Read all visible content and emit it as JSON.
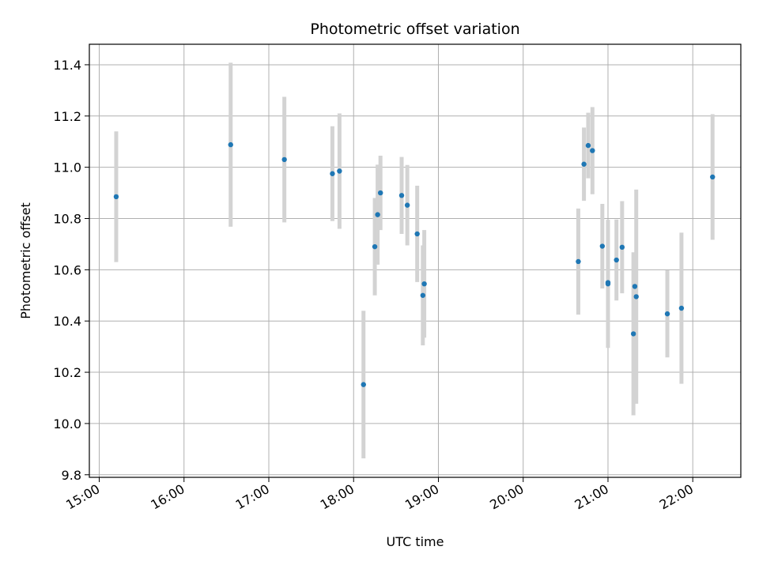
{
  "chart_data": {
    "type": "scatter",
    "title": "Photometric offset variation",
    "xlabel": "UTC time",
    "ylabel": "Photometric offset",
    "xlim": [
      "14:53",
      "22:34"
    ],
    "ylim": [
      9.79,
      11.48
    ],
    "x_ticks": [
      "15:00",
      "16:00",
      "17:00",
      "18:00",
      "19:00",
      "20:00",
      "21:00",
      "22:00"
    ],
    "y_ticks": [
      9.8,
      10.0,
      10.2,
      10.4,
      10.6,
      10.8,
      11.0,
      11.2,
      11.4
    ],
    "y_tick_labels": [
      "9.8",
      "10.0",
      "10.2",
      "10.4",
      "10.6",
      "10.8",
      "11.0",
      "11.2",
      "11.4"
    ],
    "grid": true,
    "marker_color": "#1f77b4",
    "errorbar_color": "#d3d3d3",
    "points": [
      {
        "x": "15:12",
        "y": 10.885,
        "err": 0.255
      },
      {
        "x": "16:33",
        "y": 11.088,
        "err": 0.32
      },
      {
        "x": "17:11",
        "y": 11.03,
        "err": 0.245
      },
      {
        "x": "17:45",
        "y": 10.975,
        "err": 0.185
      },
      {
        "x": "17:50",
        "y": 10.985,
        "err": 0.225
      },
      {
        "x": "18:07",
        "y": 10.152,
        "err": 0.288
      },
      {
        "x": "18:15",
        "y": 10.69,
        "err": 0.19
      },
      {
        "x": "18:17",
        "y": 10.815,
        "err": 0.195
      },
      {
        "x": "18:19",
        "y": 10.9,
        "err": 0.145
      },
      {
        "x": "18:34",
        "y": 10.89,
        "err": 0.15
      },
      {
        "x": "18:38",
        "y": 10.852,
        "err": 0.157
      },
      {
        "x": "18:45",
        "y": 10.74,
        "err": 0.188
      },
      {
        "x": "18:49",
        "y": 10.5,
        "err": 0.195
      },
      {
        "x": "18:50",
        "y": 10.545,
        "err": 0.21
      },
      {
        "x": "20:39",
        "y": 10.632,
        "err": 0.207
      },
      {
        "x": "20:43",
        "y": 11.012,
        "err": 0.143
      },
      {
        "x": "20:46",
        "y": 11.085,
        "err": 0.128
      },
      {
        "x": "20:49",
        "y": 11.065,
        "err": 0.17
      },
      {
        "x": "20:56",
        "y": 10.692,
        "err": 0.165
      },
      {
        "x": "21:00",
        "y": 10.55,
        "err": 0.1
      },
      {
        "x": "21:00",
        "y": 10.545,
        "err": 0.25
      },
      {
        "x": "21:06",
        "y": 10.638,
        "err": 0.158
      },
      {
        "x": "21:10",
        "y": 10.688,
        "err": 0.18
      },
      {
        "x": "21:18",
        "y": 10.35,
        "err": 0.318
      },
      {
        "x": "21:19",
        "y": 10.535,
        "err": 0.13
      },
      {
        "x": "21:20",
        "y": 10.495,
        "err": 0.418
      },
      {
        "x": "21:42",
        "y": 10.428,
        "err": 0.17
      },
      {
        "x": "21:52",
        "y": 10.45,
        "err": 0.295
      },
      {
        "x": "22:14",
        "y": 10.962,
        "err": 0.245
      }
    ]
  }
}
